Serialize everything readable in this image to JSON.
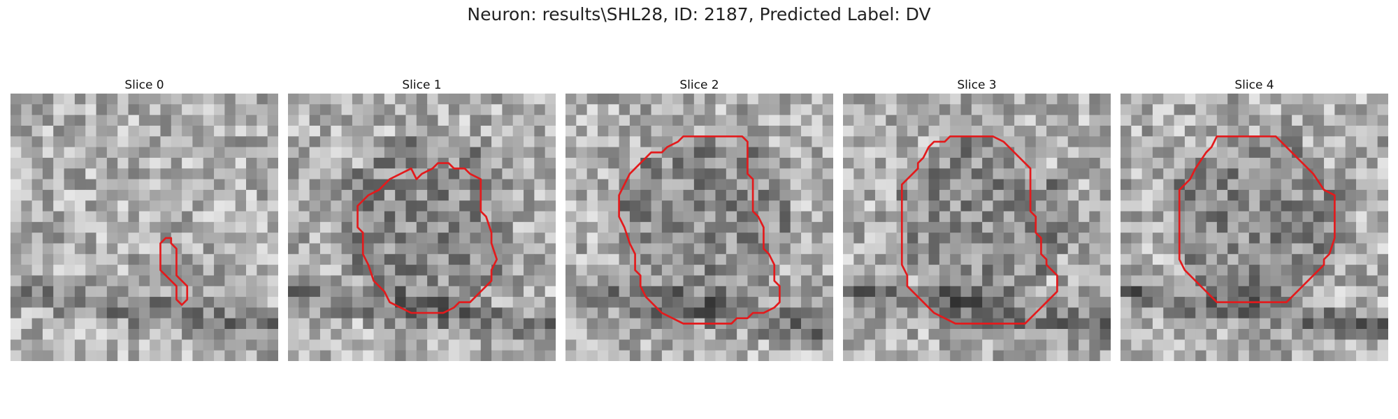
{
  "title": "Neuron: results\\SHL28, ID: 2187, Predicted Label: DV",
  "outline_color": "#e31a1c",
  "panels": [
    {
      "label": "Slice 0",
      "seed": 11,
      "outline": [
        [
          11.6,
          10.8
        ],
        [
          12.0,
          10.8
        ],
        [
          12.0,
          11.2
        ],
        [
          12.4,
          11.6
        ],
        [
          12.4,
          13.6
        ],
        [
          13.2,
          14.4
        ],
        [
          13.2,
          15.4
        ],
        [
          12.8,
          15.8
        ],
        [
          12.4,
          15.4
        ],
        [
          12.4,
          14.4
        ],
        [
          11.6,
          13.6
        ],
        [
          11.2,
          13.2
        ],
        [
          11.2,
          11.2
        ]
      ]
    },
    {
      "label": "Slice 1",
      "seed": 23,
      "outline": [
        [
          9.6,
          6.4
        ],
        [
          10.0,
          6.0
        ],
        [
          10.8,
          5.6
        ],
        [
          11.2,
          5.2
        ],
        [
          12.0,
          5.2
        ],
        [
          12.4,
          5.6
        ],
        [
          13.2,
          5.6
        ],
        [
          13.6,
          6.0
        ],
        [
          14.4,
          6.4
        ],
        [
          14.4,
          7.2
        ],
        [
          14.4,
          8.8
        ],
        [
          14.8,
          9.2
        ],
        [
          15.2,
          10.4
        ],
        [
          15.2,
          11.2
        ],
        [
          15.6,
          12.4
        ],
        [
          15.2,
          13.2
        ],
        [
          15.2,
          14.0
        ],
        [
          14.8,
          14.4
        ],
        [
          14.4,
          14.8
        ],
        [
          13.6,
          15.6
        ],
        [
          12.8,
          15.6
        ],
        [
          12.4,
          16.0
        ],
        [
          11.6,
          16.4
        ],
        [
          10.4,
          16.4
        ],
        [
          9.2,
          16.4
        ],
        [
          8.4,
          16.0
        ],
        [
          7.6,
          15.6
        ],
        [
          7.2,
          14.8
        ],
        [
          6.4,
          14.0
        ],
        [
          6.0,
          12.8
        ],
        [
          5.6,
          12.0
        ],
        [
          5.6,
          10.4
        ],
        [
          5.2,
          10.0
        ],
        [
          5.2,
          8.4
        ],
        [
          5.6,
          8.0
        ],
        [
          6.0,
          7.6
        ],
        [
          6.8,
          7.2
        ],
        [
          7.6,
          6.4
        ],
        [
          8.4,
          6.0
        ],
        [
          9.2,
          5.6
        ]
      ]
    },
    {
      "label": "Slice 2",
      "seed": 37,
      "outline": [
        [
          8.4,
          3.6
        ],
        [
          8.8,
          3.2
        ],
        [
          10.0,
          3.2
        ],
        [
          12.0,
          3.2
        ],
        [
          13.2,
          3.2
        ],
        [
          13.6,
          3.6
        ],
        [
          13.6,
          4.4
        ],
        [
          13.6,
          6.0
        ],
        [
          14.0,
          6.4
        ],
        [
          14.0,
          8.8
        ],
        [
          14.4,
          9.2
        ],
        [
          14.8,
          10.0
        ],
        [
          14.8,
          11.6
        ],
        [
          15.2,
          12.0
        ],
        [
          15.6,
          12.8
        ],
        [
          15.6,
          14.0
        ],
        [
          16.0,
          14.4
        ],
        [
          16.0,
          15.6
        ],
        [
          15.6,
          16.0
        ],
        [
          14.8,
          16.4
        ],
        [
          14.0,
          16.4
        ],
        [
          13.6,
          16.8
        ],
        [
          12.8,
          16.8
        ],
        [
          12.4,
          17.2
        ],
        [
          11.6,
          17.2
        ],
        [
          10.0,
          17.2
        ],
        [
          8.8,
          17.2
        ],
        [
          8.0,
          16.8
        ],
        [
          7.2,
          16.4
        ],
        [
          6.8,
          16.0
        ],
        [
          6.0,
          15.2
        ],
        [
          5.6,
          14.4
        ],
        [
          5.6,
          13.6
        ],
        [
          5.2,
          13.2
        ],
        [
          5.2,
          12.0
        ],
        [
          4.8,
          11.2
        ],
        [
          4.4,
          10.0
        ],
        [
          4.0,
          9.2
        ],
        [
          4.0,
          7.6
        ],
        [
          4.4,
          6.8
        ],
        [
          4.8,
          6.0
        ],
        [
          5.2,
          5.6
        ],
        [
          5.6,
          5.2
        ],
        [
          6.0,
          4.8
        ],
        [
          6.4,
          4.4
        ],
        [
          7.2,
          4.4
        ],
        [
          7.6,
          4.0
        ]
      ]
    },
    {
      "label": "Slice 3",
      "seed": 53,
      "outline": [
        [
          6.4,
          4.0
        ],
        [
          6.8,
          3.6
        ],
        [
          7.6,
          3.6
        ],
        [
          8.0,
          3.2
        ],
        [
          9.6,
          3.2
        ],
        [
          11.2,
          3.2
        ],
        [
          12.0,
          3.6
        ],
        [
          12.4,
          4.0
        ],
        [
          13.2,
          4.8
        ],
        [
          14.0,
          5.6
        ],
        [
          14.0,
          7.6
        ],
        [
          14.0,
          8.0
        ],
        [
          14.0,
          8.8
        ],
        [
          14.0,
          8.8
        ],
        [
          14.4,
          9.2
        ],
        [
          14.4,
          10.4
        ],
        [
          14.8,
          10.8
        ],
        [
          14.8,
          12.0
        ],
        [
          15.2,
          12.4
        ],
        [
          15.2,
          12.8
        ],
        [
          15.6,
          13.2
        ],
        [
          16.0,
          13.6
        ],
        [
          16.0,
          14.4
        ],
        [
          16.0,
          14.8
        ],
        [
          15.6,
          15.2
        ],
        [
          15.2,
          15.6
        ],
        [
          14.8,
          16.0
        ],
        [
          14.4,
          16.4
        ],
        [
          14.0,
          16.8
        ],
        [
          13.6,
          17.2
        ],
        [
          12.0,
          17.2
        ],
        [
          10.0,
          17.2
        ],
        [
          8.4,
          17.2
        ],
        [
          7.6,
          16.8
        ],
        [
          6.8,
          16.4
        ],
        [
          6.0,
          15.6
        ],
        [
          5.6,
          15.2
        ],
        [
          5.2,
          14.8
        ],
        [
          4.8,
          14.4
        ],
        [
          4.8,
          13.6
        ],
        [
          4.4,
          12.8
        ],
        [
          4.4,
          12.0
        ],
        [
          4.4,
          10.8
        ],
        [
          4.4,
          8.4
        ],
        [
          4.4,
          6.8
        ],
        [
          4.8,
          6.4
        ],
        [
          5.2,
          6.0
        ],
        [
          5.6,
          5.6
        ],
        [
          5.6,
          5.2
        ],
        [
          6.0,
          4.8
        ]
      ]
    },
    {
      "label": "Slice 4",
      "seed": 71,
      "outline": [
        [
          7.2,
          3.2
        ],
        [
          9.6,
          3.2
        ],
        [
          11.6,
          3.2
        ],
        [
          12.0,
          3.6
        ],
        [
          12.8,
          4.4
        ],
        [
          13.6,
          5.2
        ],
        [
          14.4,
          6.0
        ],
        [
          15.2,
          7.2
        ],
        [
          16.0,
          7.6
        ],
        [
          16.0,
          10.4
        ],
        [
          16.0,
          10.4
        ],
        [
          16.0,
          10.8
        ],
        [
          15.6,
          12.0
        ],
        [
          15.2,
          12.4
        ],
        [
          15.2,
          12.8
        ],
        [
          14.8,
          13.2
        ],
        [
          14.4,
          13.6
        ],
        [
          13.2,
          14.8
        ],
        [
          12.4,
          15.6
        ],
        [
          12.4,
          15.6
        ],
        [
          11.6,
          15.6
        ],
        [
          8.4,
          15.6
        ],
        [
          7.2,
          15.6
        ],
        [
          6.4,
          14.8
        ],
        [
          5.6,
          14.0
        ],
        [
          4.8,
          13.2
        ],
        [
          4.4,
          12.4
        ],
        [
          4.4,
          10.0
        ],
        [
          4.4,
          8.8
        ],
        [
          4.4,
          7.2
        ],
        [
          5.2,
          6.4
        ],
        [
          5.6,
          5.6
        ],
        [
          6.4,
          4.4
        ],
        [
          6.8,
          4.0
        ]
      ]
    }
  ]
}
